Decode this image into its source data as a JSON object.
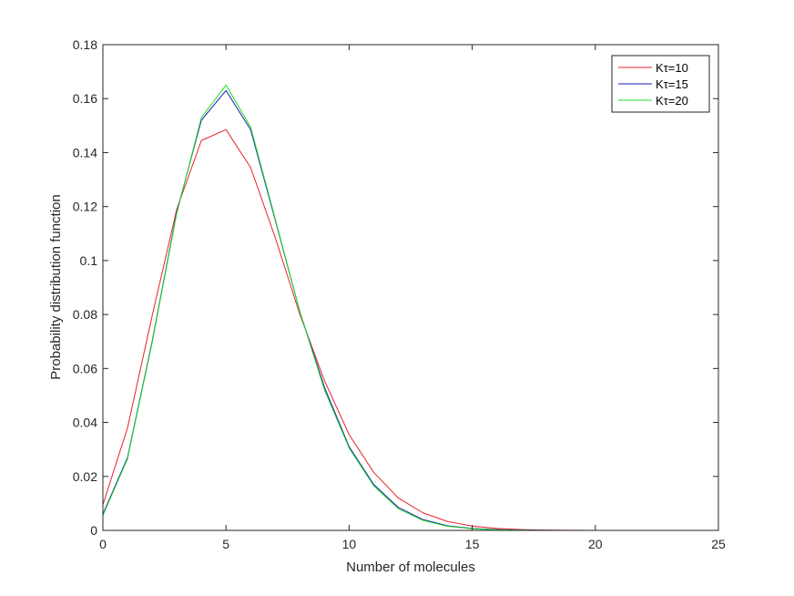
{
  "chart_data": {
    "type": "line",
    "xlabel": "Number of molecules",
    "ylabel": "Probability distribution function",
    "xlim": [
      0,
      25
    ],
    "ylim": [
      0,
      0.18
    ],
    "xticks": [
      0,
      5,
      10,
      15,
      20,
      25
    ],
    "xtick_labels": [
      "0",
      "5",
      "10",
      "15",
      "20",
      "25"
    ],
    "yticks": [
      0,
      0.02,
      0.04,
      0.06,
      0.08,
      0.1,
      0.12,
      0.14,
      0.16,
      0.18
    ],
    "ytick_labels": [
      "0",
      "0.02",
      "0.04",
      "0.06",
      "0.08",
      "0.1",
      "0.12",
      "0.14",
      "0.16",
      "0.18"
    ],
    "grid": false,
    "box": true,
    "legend_position": "top-right",
    "x": [
      0,
      1,
      2,
      3,
      4,
      5,
      6,
      7,
      8,
      9,
      10,
      11,
      12,
      13,
      14,
      15,
      16,
      17,
      18,
      19,
      20,
      21,
      22,
      23,
      24,
      25
    ],
    "series": [
      {
        "name": "Kτ=10",
        "color": "#e8212a",
        "values": [
          0.0095,
          0.038,
          0.0795,
          0.119,
          0.1445,
          0.1485,
          0.1345,
          0.1085,
          0.08,
          0.0555,
          0.0355,
          0.0215,
          0.012,
          0.0065,
          0.0033,
          0.0016,
          0.0007,
          0.0003,
          0.0001,
          5e-05,
          2e-05,
          0,
          0,
          0,
          0,
          0
        ]
      },
      {
        "name": "Kτ=15",
        "color": "#1a1ab8",
        "values": [
          0.006,
          0.027,
          0.07,
          0.118,
          0.152,
          0.163,
          0.1485,
          0.115,
          0.081,
          0.053,
          0.031,
          0.017,
          0.0085,
          0.004,
          0.0017,
          0.0007,
          0.0003,
          0.0001,
          4e-05,
          1e-05,
          0,
          0,
          0,
          0,
          0,
          0
        ]
      },
      {
        "name": "Kτ=20",
        "color": "#22dd22",
        "values": [
          0.0055,
          0.0265,
          0.0695,
          0.1175,
          0.153,
          0.165,
          0.1495,
          0.1155,
          0.081,
          0.052,
          0.0305,
          0.0165,
          0.008,
          0.0037,
          0.0015,
          0.0006,
          0.0002,
          7e-05,
          2e-05,
          0,
          0,
          0,
          0,
          0,
          0,
          0
        ]
      }
    ]
  }
}
